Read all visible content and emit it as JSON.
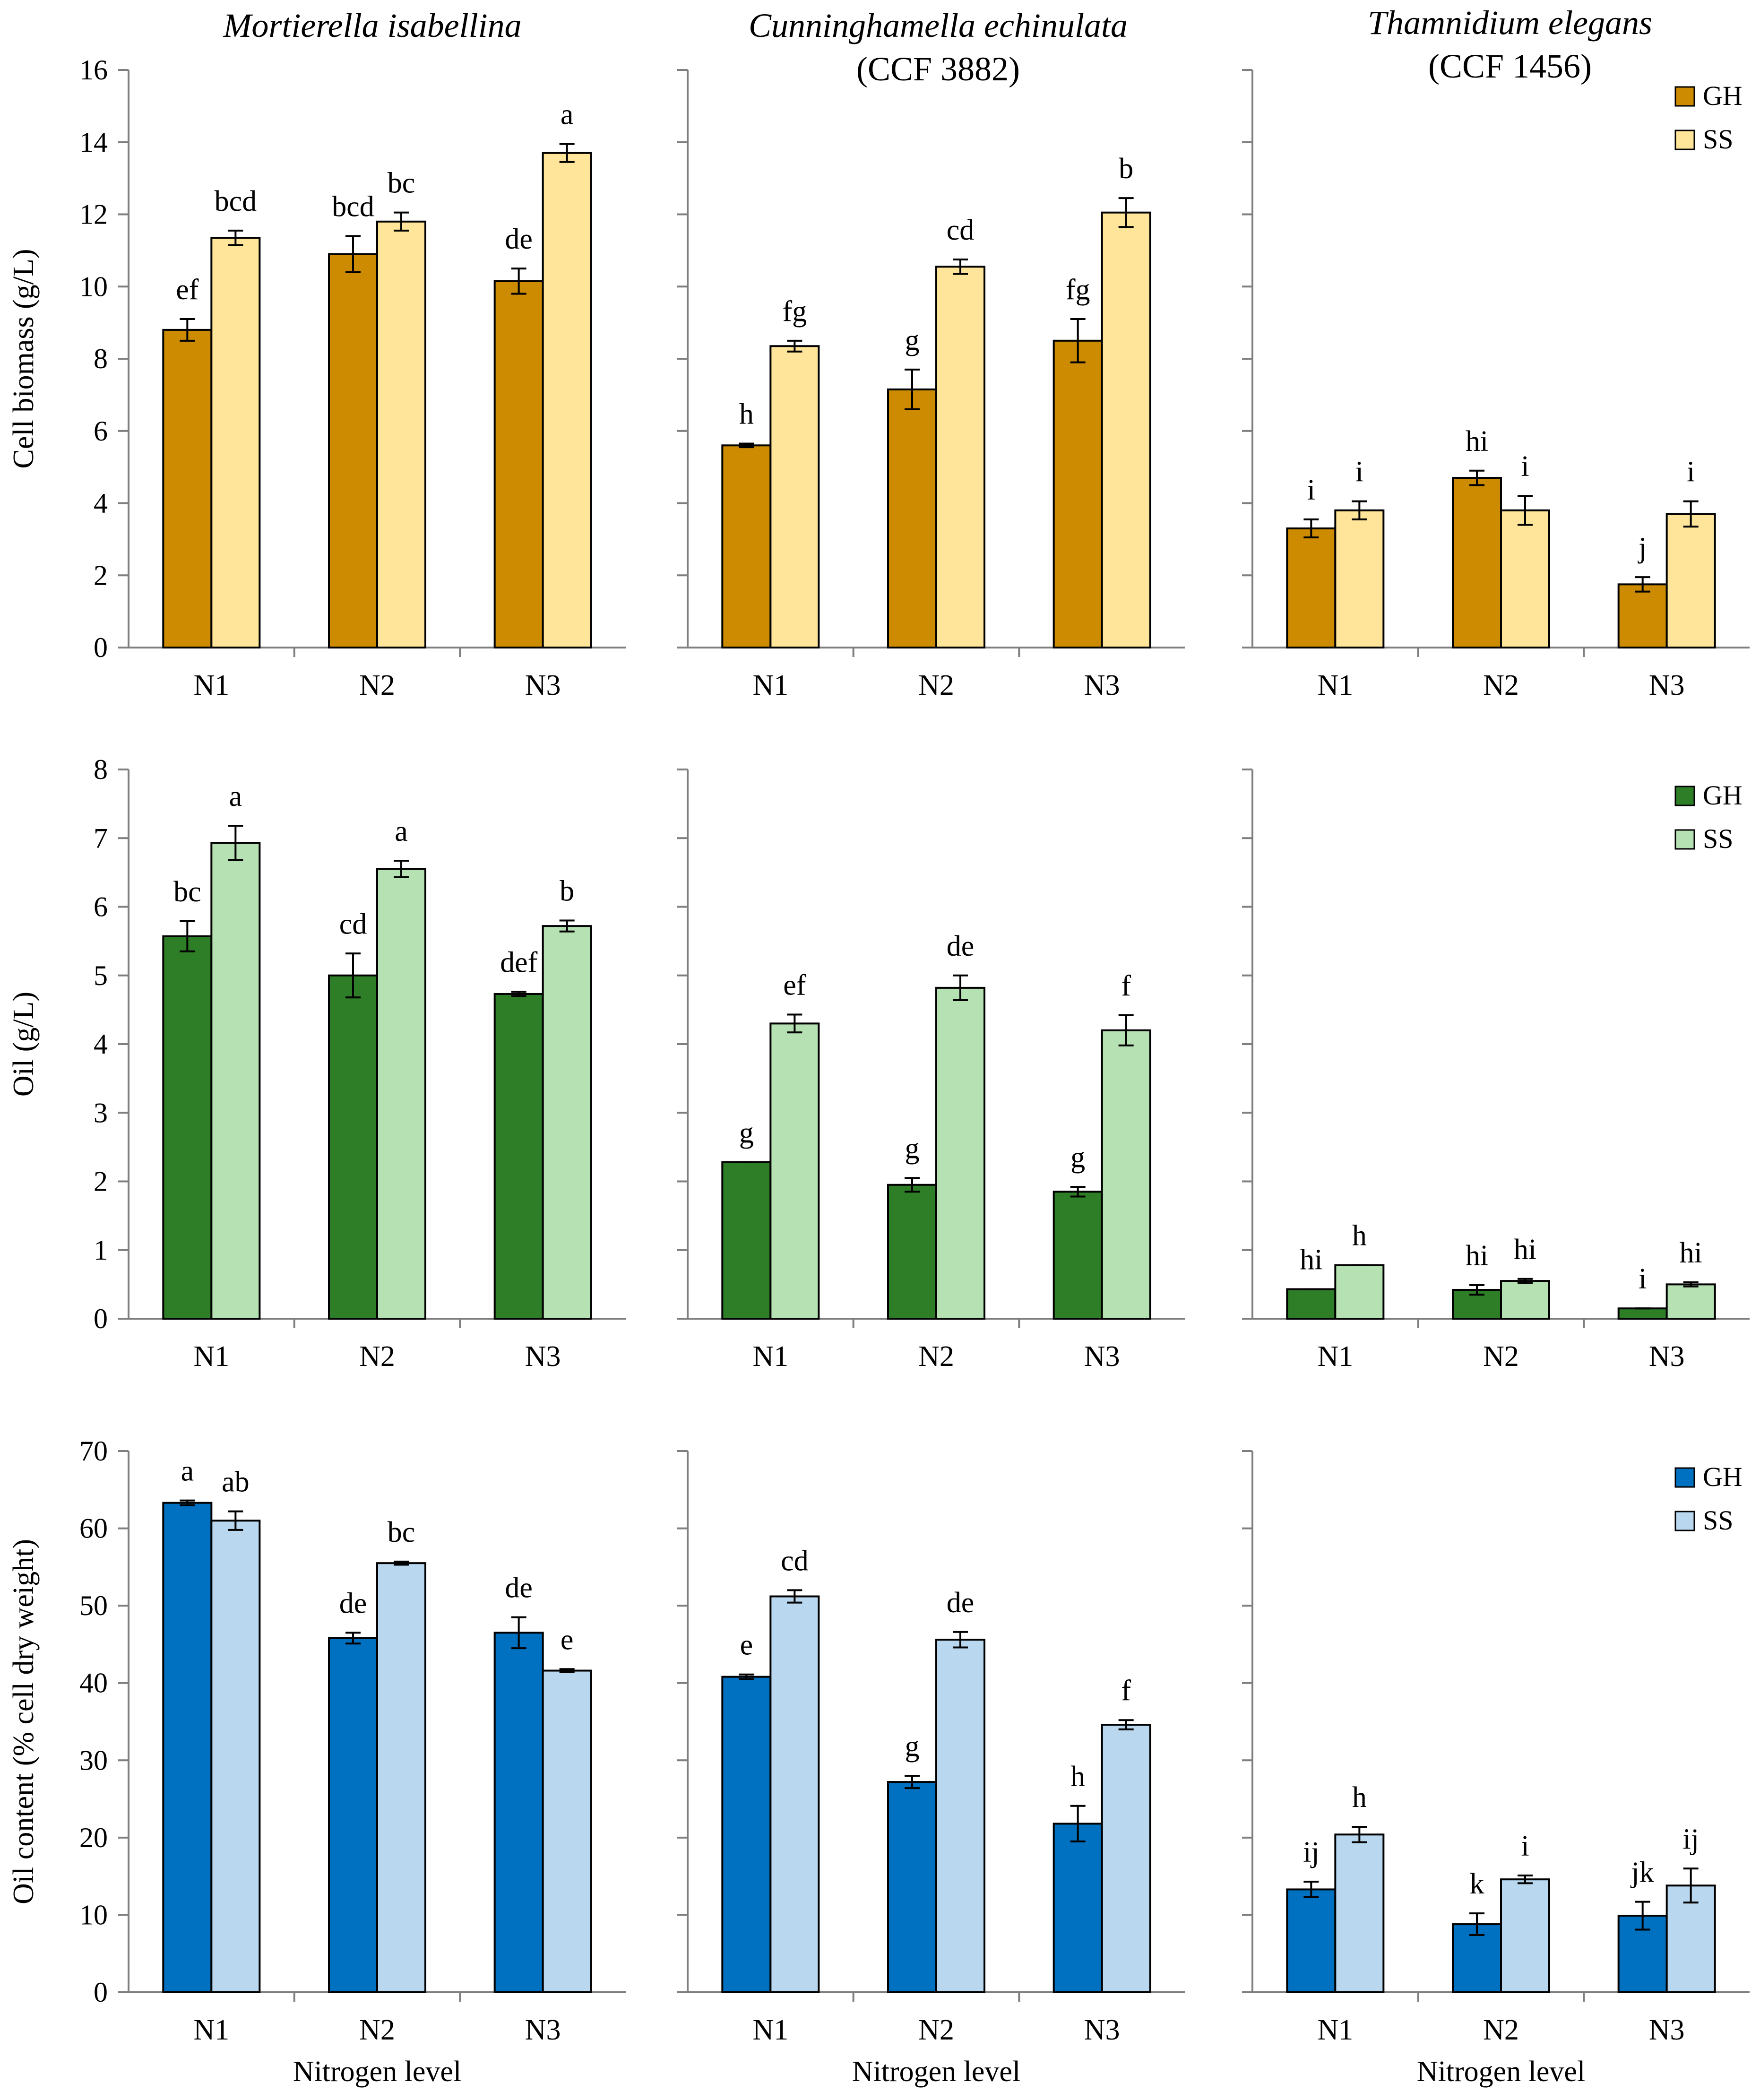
{
  "titles": [
    {
      "line1": "Mortierella isabellina",
      "line2": ""
    },
    {
      "line1": "Cunninghamella echinulata",
      "line2": "(CCF 3882)"
    },
    {
      "line1": "Thamnidium elegans",
      "line2": "(CCF 1456)"
    }
  ],
  "chart_data": [
    {
      "type": "bar",
      "id": "biomass",
      "ylabel": "Cell biomass (g/L)",
      "ylim": [
        0,
        16
      ],
      "ystep": 2,
      "categories": [
        "N1",
        "N2",
        "N3"
      ],
      "legend": [
        "GH",
        "SS"
      ],
      "colors": {
        "GH": "#cc8b00",
        "SS": "#ffe599"
      },
      "panels": [
        {
          "species": "Mortierella isabellina",
          "series": [
            {
              "name": "GH",
              "values": [
                8.8,
                10.9,
                10.15
              ],
              "errors": [
                0.3,
                0.5,
                0.35
              ],
              "labels": [
                "ef",
                "bcd",
                "de"
              ]
            },
            {
              "name": "SS",
              "values": [
                11.35,
                11.8,
                13.7
              ],
              "errors": [
                0.2,
                0.25,
                0.25
              ],
              "labels": [
                "bcd",
                "bc",
                "a"
              ]
            }
          ]
        },
        {
          "species": "Cunninghamella echinulata",
          "series": [
            {
              "name": "GH",
              "values": [
                5.6,
                7.15,
                8.5
              ],
              "errors": [
                0.05,
                0.55,
                0.6
              ],
              "labels": [
                "h",
                "g",
                "fg"
              ]
            },
            {
              "name": "SS",
              "values": [
                8.35,
                10.55,
                12.05
              ],
              "errors": [
                0.15,
                0.2,
                0.4
              ],
              "labels": [
                "fg",
                "cd",
                "b"
              ]
            }
          ]
        },
        {
          "species": "Thamnidium elegans",
          "series": [
            {
              "name": "GH",
              "values": [
                3.3,
                4.7,
                1.75
              ],
              "errors": [
                0.25,
                0.2,
                0.2
              ],
              "labels": [
                "i",
                "hi",
                "j"
              ]
            },
            {
              "name": "SS",
              "values": [
                3.8,
                3.8,
                3.7
              ],
              "errors": [
                0.25,
                0.4,
                0.35
              ],
              "labels": [
                "i",
                "i",
                "i"
              ]
            }
          ]
        }
      ]
    },
    {
      "type": "bar",
      "id": "oil",
      "ylabel": "Oil  (g/L)",
      "ylim": [
        0,
        8
      ],
      "ystep": 1,
      "categories": [
        "N1",
        "N2",
        "N3"
      ],
      "legend": [
        "GH",
        "SS"
      ],
      "colors": {
        "GH": "#2e7d27",
        "SS": "#b6e1b2"
      },
      "panels": [
        {
          "species": "Mortierella isabellina",
          "series": [
            {
              "name": "GH",
              "values": [
                5.57,
                5.0,
                4.73
              ],
              "errors": [
                0.22,
                0.32,
                0.03
              ],
              "labels": [
                "bc",
                "cd",
                "def"
              ]
            },
            {
              "name": "SS",
              "values": [
                6.93,
                6.55,
                5.72
              ],
              "errors": [
                0.25,
                0.12,
                0.08
              ],
              "labels": [
                "a",
                "a",
                "b"
              ]
            }
          ]
        },
        {
          "species": "Cunninghamella echinulata",
          "series": [
            {
              "name": "GH",
              "values": [
                2.28,
                1.95,
                1.85
              ],
              "errors": [
                0.0,
                0.1,
                0.07
              ],
              "labels": [
                "g",
                "g",
                "g"
              ]
            },
            {
              "name": "SS",
              "values": [
                4.3,
                4.82,
                4.2
              ],
              "errors": [
                0.13,
                0.18,
                0.22
              ],
              "labels": [
                "ef",
                "de",
                "f"
              ]
            }
          ]
        },
        {
          "species": "Thamnidium elegans",
          "series": [
            {
              "name": "GH",
              "values": [
                0.43,
                0.42,
                0.15
              ],
              "errors": [
                0.0,
                0.07,
                0.0
              ],
              "labels": [
                "hi",
                "hi",
                "i"
              ]
            },
            {
              "name": "SS",
              "values": [
                0.78,
                0.55,
                0.5
              ],
              "errors": [
                0.0,
                0.03,
                0.03
              ],
              "labels": [
                "h",
                "hi",
                "hi"
              ]
            }
          ]
        }
      ]
    },
    {
      "type": "bar",
      "id": "oilcontent",
      "ylabel": "Oil content (% cell dry weight)",
      "xlabel": "Nitrogen level",
      "ylim": [
        0,
        70
      ],
      "ystep": 10,
      "categories": [
        "N1",
        "N2",
        "N3"
      ],
      "legend": [
        "GH",
        "SS"
      ],
      "colors": {
        "GH": "#0070c0",
        "SS": "#b9d8ef"
      },
      "panels": [
        {
          "species": "Mortierella isabellina",
          "series": [
            {
              "name": "GH",
              "values": [
                63.3,
                45.8,
                46.5
              ],
              "errors": [
                0.3,
                0.7,
                2.0
              ],
              "labels": [
                "a",
                "de",
                "de"
              ]
            },
            {
              "name": "SS",
              "values": [
                61.0,
                55.5,
                41.6
              ],
              "errors": [
                1.2,
                0.2,
                0.2
              ],
              "labels": [
                "ab",
                "bc",
                "e"
              ]
            }
          ]
        },
        {
          "species": "Cunninghamella echinulata",
          "series": [
            {
              "name": "GH",
              "values": [
                40.8,
                27.2,
                21.8
              ],
              "errors": [
                0.3,
                0.8,
                2.3
              ],
              "labels": [
                "e",
                "g",
                "h"
              ]
            },
            {
              "name": "SS",
              "values": [
                51.2,
                45.6,
                34.6
              ],
              "errors": [
                0.8,
                1.0,
                0.6
              ],
              "labels": [
                "cd",
                "de",
                "f"
              ]
            }
          ]
        },
        {
          "species": "Thamnidium elegans",
          "series": [
            {
              "name": "GH",
              "values": [
                13.3,
                8.8,
                9.9
              ],
              "errors": [
                1.0,
                1.4,
                1.8
              ],
              "labels": [
                "ij",
                "k",
                "jk"
              ]
            },
            {
              "name": "SS",
              "values": [
                20.4,
                14.6,
                13.8
              ],
              "errors": [
                1.0,
                0.5,
                2.2
              ],
              "labels": [
                "h",
                "i",
                "ij"
              ]
            }
          ]
        }
      ]
    }
  ]
}
